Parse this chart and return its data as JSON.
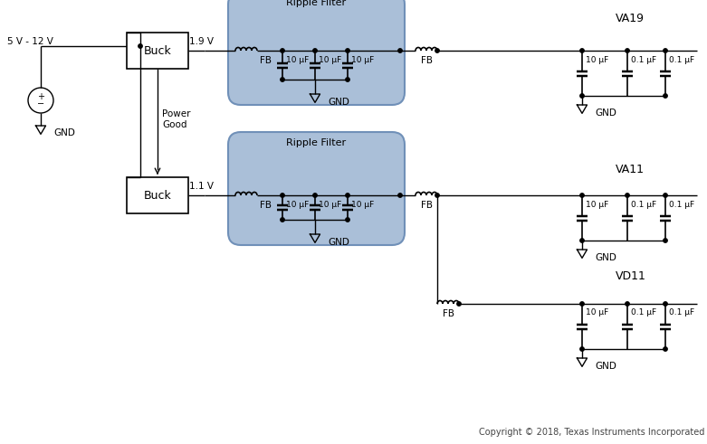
{
  "bg_color": "#ffffff",
  "ripple_filter_color": "#aabfd8",
  "ripple_filter_edge": "#7090b8",
  "line_color": "#000000",
  "voltage_top": "1.9 V",
  "voltage_bot": "1.1 V",
  "supply_label": "5 V - 12 V",
  "power_good_label": "Power\nGood",
  "gnd_label": "GND",
  "ripple_filter_label": "Ripple Filter",
  "cap_labels_ripple": [
    "10 μF",
    "10 μF",
    "10 μF"
  ],
  "cap_labels_out": [
    "10 μF",
    "0.1 μF",
    "0.1 μF"
  ],
  "fb_label": "FB",
  "va19_label": "VA19",
  "va11_label": "VA11",
  "vd11_label": "VD11",
  "copyright": "Copyright © 2018, Texas Instruments Incorporated"
}
